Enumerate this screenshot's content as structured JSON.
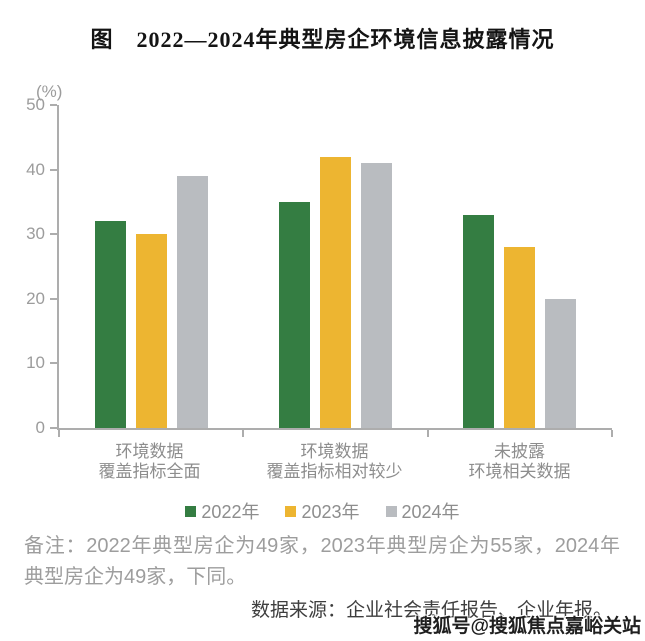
{
  "chart_data": {
    "type": "bar",
    "title": "图　2022—2024年典型房企环境信息披露情况",
    "unit_label": "(%)",
    "categories": [
      "环境数据\n覆盖指标全面",
      "环境数据\n覆盖指标相对较少",
      "未披露\n环境相关数据"
    ],
    "series": [
      {
        "name": "2022年",
        "key": "2022",
        "color": "#347d42",
        "values": [
          32,
          35,
          33
        ]
      },
      {
        "name": "2023年",
        "key": "2023",
        "color": "#edb531",
        "values": [
          30,
          42,
          28
        ]
      },
      {
        "name": "2024年",
        "key": "2024",
        "color": "#b9bcc0",
        "values": [
          39,
          41,
          20
        ]
      }
    ],
    "ylim": [
      0,
      50
    ],
    "yticks": [
      0,
      10,
      20,
      30,
      40,
      50
    ],
    "grid": false,
    "legend_position": "bottom"
  },
  "note": {
    "text": "备注：2022年典型房企为49家，2023年典型房企为55家，2024年典型房企为49家，下同。"
  },
  "source": {
    "text": "数据来源：企业社会责任报告、企业年报。"
  },
  "watermark": {
    "text": "搜狐号@搜狐焦点嘉峪关站"
  },
  "colors": {
    "series_2022": "#347d42",
    "series_2023": "#edb531",
    "series_2024": "#b9bcc0",
    "axis": "#adadad",
    "tick_text": "#9c9c9c",
    "category_text": "#8d8d8d",
    "note_text": "#9d9d9d",
    "source_text": "#3e3e3e",
    "title_text": "#141414",
    "background": "#ffffff"
  }
}
